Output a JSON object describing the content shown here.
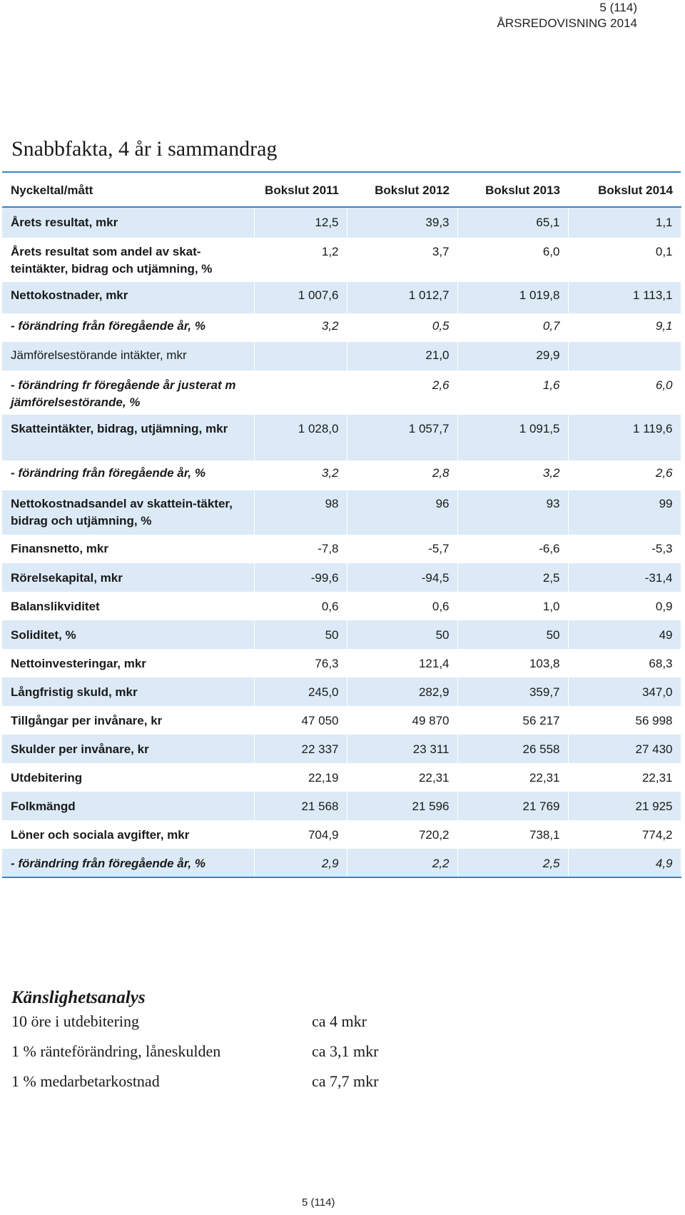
{
  "header": {
    "page_ref": "5 (114)",
    "report_title": "ÅRSREDOVISNING 2014"
  },
  "title": "Snabbfakta, 4 år i sammandrag",
  "table": {
    "columns": [
      "Nyckeltal/mått",
      "Bokslut 2011",
      "Bokslut 2012",
      "Bokslut 2013",
      "Bokslut 2014"
    ],
    "rows": [
      {
        "label": "Årets resultat, mkr",
        "values": [
          "12,5",
          "39,3",
          "65,1",
          "1,1"
        ]
      },
      {
        "label": "Årets resultat som andel av skat-teintäkter, bidrag och utjämning, %",
        "values": [
          "1,2",
          "3,7",
          "6,0",
          "0,1"
        ]
      },
      {
        "label": "Nettokostnader, mkr",
        "values": [
          "1 007,6",
          "1 012,7",
          "1 019,8",
          "1 113,1"
        ]
      },
      {
        "label": "- förändring från föregående år, %",
        "values": [
          "3,2",
          "0,5",
          "0,7",
          "9,1"
        ]
      },
      {
        "label": "Jämförelsestörande intäkter, mkr",
        "values": [
          "",
          "21,0",
          "29,9",
          ""
        ]
      },
      {
        "label": "- förändring fr föregående år justerat m jämförelsestörande, %",
        "values": [
          "",
          "2,6",
          "1,6",
          "6,0"
        ]
      },
      {
        "label": "Skatteintäkter, bidrag, utjämning, mkr",
        "values": [
          "1 028,0",
          "1 057,7",
          "1 091,5",
          "1 119,6"
        ]
      },
      {
        "label": "- förändring från föregående år, %",
        "values": [
          "3,2",
          "2,8",
          "3,2",
          "2,6"
        ]
      },
      {
        "label": "Nettokostnadsandel av skattein-täkter, bidrag och utjämning, %",
        "values": [
          "98",
          "96",
          "93",
          "99"
        ]
      },
      {
        "label": "Finansnetto, mkr",
        "values": [
          "-7,8",
          "-5,7",
          "-6,6",
          "-5,3"
        ]
      },
      {
        "label": "Rörelsekapital, mkr",
        "values": [
          "-99,6",
          "-94,5",
          "2,5",
          "-31,4"
        ]
      },
      {
        "label": "Balanslikviditet",
        "values": [
          "0,6",
          "0,6",
          "1,0",
          "0,9"
        ]
      },
      {
        "label": "Soliditet, %",
        "values": [
          "50",
          "50",
          "50",
          "49"
        ]
      },
      {
        "label": "Nettoinvesteringar, mkr",
        "values": [
          "76,3",
          "121,4",
          "103,8",
          "68,3"
        ]
      },
      {
        "label": "Långfristig skuld, mkr",
        "values": [
          "245,0",
          "282,9",
          "359,7",
          "347,0"
        ]
      },
      {
        "label": "Tillgångar per invånare, kr",
        "values": [
          "47 050",
          "49 870",
          "56 217",
          "56 998"
        ]
      },
      {
        "label": "Skulder per invånare, kr",
        "values": [
          "22 337",
          "23 311",
          "26 558",
          "27 430"
        ]
      },
      {
        "label": "Utdebitering",
        "values": [
          "22,19",
          "22,31",
          "22,31",
          "22,31"
        ]
      },
      {
        "label": "Folkmängd",
        "values": [
          "21 568",
          "21 596",
          "21 769",
          "21 925"
        ]
      },
      {
        "label": "Löner och sociala avgifter, mkr",
        "values": [
          "704,9",
          "720,2",
          "738,1",
          "774,2"
        ]
      },
      {
        "label": "- förändring från föregående år, %",
        "values": [
          "2,9",
          "2,2",
          "2,5",
          "4,9"
        ]
      }
    ]
  },
  "sensitivity": {
    "title": "Känslighetsanalys",
    "items": [
      {
        "label": "10 öre i utdebitering",
        "value": "ca 4 mkr"
      },
      {
        "label": "1 % ränteförändring, låneskulden",
        "value": "ca 3,1 mkr"
      },
      {
        "label": "1 % medarbetarkostnad",
        "value": "ca 7,7 mkr"
      }
    ]
  },
  "footer": {
    "page_ref": "5 (114)"
  },
  "colors": {
    "row_shade": "#dbeaf6",
    "rule": "#3a83c2"
  }
}
